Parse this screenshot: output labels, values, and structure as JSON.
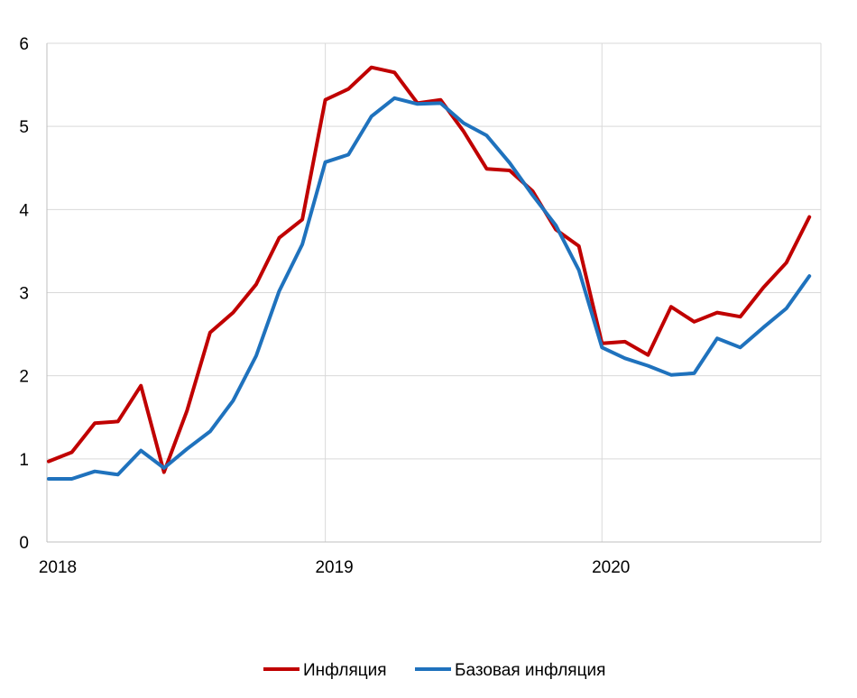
{
  "chart_data": {
    "type": "line",
    "title": "",
    "xlabel": "",
    "ylabel": "",
    "ylim": [
      0,
      6
    ],
    "yticks": [
      0,
      1,
      2,
      3,
      4,
      5,
      6
    ],
    "x_tick_labels": [
      "2018",
      "2019",
      "2020"
    ],
    "x_tick_positions": [
      0,
      12,
      24
    ],
    "grid": true,
    "legend": "bottom",
    "x": [
      0,
      1,
      2,
      3,
      4,
      5,
      6,
      7,
      8,
      9,
      10,
      11,
      12,
      13,
      14,
      15,
      16,
      17,
      18,
      19,
      20,
      21,
      22,
      23,
      24,
      25,
      26,
      27,
      28,
      29,
      30,
      31,
      32,
      33
    ],
    "series": [
      {
        "name": "Инфляция",
        "color": "#c00000",
        "values": [
          0.97,
          1.08,
          1.43,
          1.45,
          1.88,
          0.84,
          1.58,
          2.52,
          2.76,
          3.1,
          3.66,
          3.88,
          5.32,
          5.45,
          5.71,
          5.65,
          5.28,
          5.32,
          4.94,
          4.49,
          4.47,
          4.22,
          3.76,
          3.56,
          2.39,
          2.41,
          2.25,
          2.83,
          2.65,
          2.76,
          2.71,
          3.06,
          3.36,
          3.91
        ]
      },
      {
        "name": "Базовая инфляция",
        "color": "#1f72bd",
        "values": [
          0.76,
          0.76,
          0.85,
          0.81,
          1.1,
          0.89,
          1.12,
          1.33,
          1.7,
          2.24,
          3.02,
          3.58,
          4.57,
          4.66,
          5.12,
          5.34,
          5.27,
          5.28,
          5.04,
          4.89,
          4.56,
          4.17,
          3.81,
          3.27,
          2.34,
          2.21,
          2.12,
          2.01,
          2.03,
          2.45,
          2.34,
          2.58,
          2.81,
          3.2
        ]
      }
    ]
  }
}
